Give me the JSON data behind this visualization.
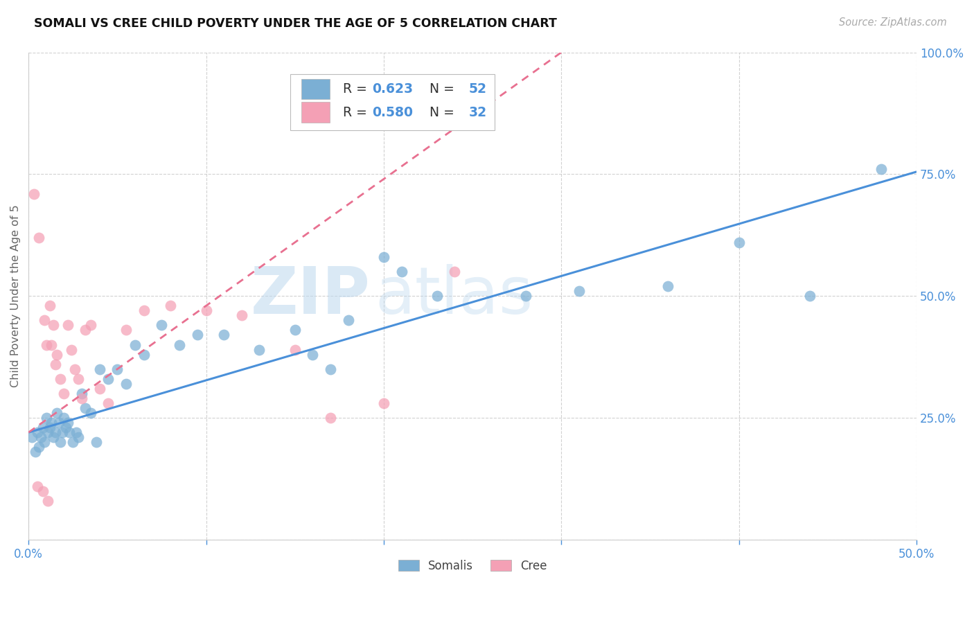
{
  "title": "SOMALI VS CREE CHILD POVERTY UNDER THE AGE OF 5 CORRELATION CHART",
  "source": "Source: ZipAtlas.com",
  "ylabel": "Child Poverty Under the Age of 5",
  "xlim": [
    0.0,
    0.5
  ],
  "ylim": [
    0.0,
    1.0
  ],
  "somali_color": "#7bafd4",
  "cree_color": "#f4a0b5",
  "somali_line_color": "#4a90d9",
  "cree_line_color": "#e87090",
  "somali_R": 0.623,
  "somali_N": 52,
  "cree_R": 0.58,
  "cree_N": 32,
  "legend_label_somalis": "Somalis",
  "legend_label_cree": "Cree",
  "watermark_zip": "ZIP",
  "watermark_atlas": "atlas",
  "title_color": "#111111",
  "axis_label_color": "#4a90d9",
  "background_color": "#ffffff",
  "grid_color": "#cccccc",
  "source_color": "#aaaaaa",
  "legend_text_color": "#333333",
  "legend_value_color": "#4a90d9",
  "somali_x": [
    0.002,
    0.004,
    0.005,
    0.006,
    0.007,
    0.008,
    0.009,
    0.01,
    0.011,
    0.012,
    0.013,
    0.014,
    0.015,
    0.016,
    0.017,
    0.018,
    0.019,
    0.02,
    0.021,
    0.022,
    0.023,
    0.025,
    0.027,
    0.028,
    0.03,
    0.032,
    0.035,
    0.038,
    0.04,
    0.045,
    0.05,
    0.055,
    0.06,
    0.065,
    0.075,
    0.085,
    0.095,
    0.11,
    0.13,
    0.15,
    0.16,
    0.17,
    0.18,
    0.2,
    0.21,
    0.23,
    0.28,
    0.31,
    0.36,
    0.4,
    0.44,
    0.48
  ],
  "somali_y": [
    0.21,
    0.18,
    0.22,
    0.19,
    0.21,
    0.23,
    0.2,
    0.25,
    0.22,
    0.23,
    0.24,
    0.21,
    0.22,
    0.26,
    0.24,
    0.2,
    0.22,
    0.25,
    0.23,
    0.24,
    0.22,
    0.2,
    0.22,
    0.21,
    0.3,
    0.27,
    0.26,
    0.2,
    0.35,
    0.33,
    0.35,
    0.32,
    0.4,
    0.38,
    0.44,
    0.4,
    0.42,
    0.42,
    0.39,
    0.43,
    0.38,
    0.35,
    0.45,
    0.58,
    0.55,
    0.5,
    0.5,
    0.51,
    0.52,
    0.61,
    0.5,
    0.76
  ],
  "cree_x": [
    0.003,
    0.005,
    0.006,
    0.008,
    0.009,
    0.01,
    0.011,
    0.012,
    0.013,
    0.014,
    0.015,
    0.016,
    0.018,
    0.02,
    0.022,
    0.024,
    0.026,
    0.028,
    0.03,
    0.032,
    0.035,
    0.04,
    0.045,
    0.055,
    0.065,
    0.08,
    0.1,
    0.12,
    0.15,
    0.17,
    0.2,
    0.24
  ],
  "cree_y": [
    0.71,
    0.11,
    0.62,
    0.1,
    0.45,
    0.4,
    0.08,
    0.48,
    0.4,
    0.44,
    0.36,
    0.38,
    0.33,
    0.3,
    0.44,
    0.39,
    0.35,
    0.33,
    0.29,
    0.43,
    0.44,
    0.31,
    0.28,
    0.43,
    0.47,
    0.48,
    0.47,
    0.46,
    0.39,
    0.25,
    0.28,
    0.55
  ]
}
